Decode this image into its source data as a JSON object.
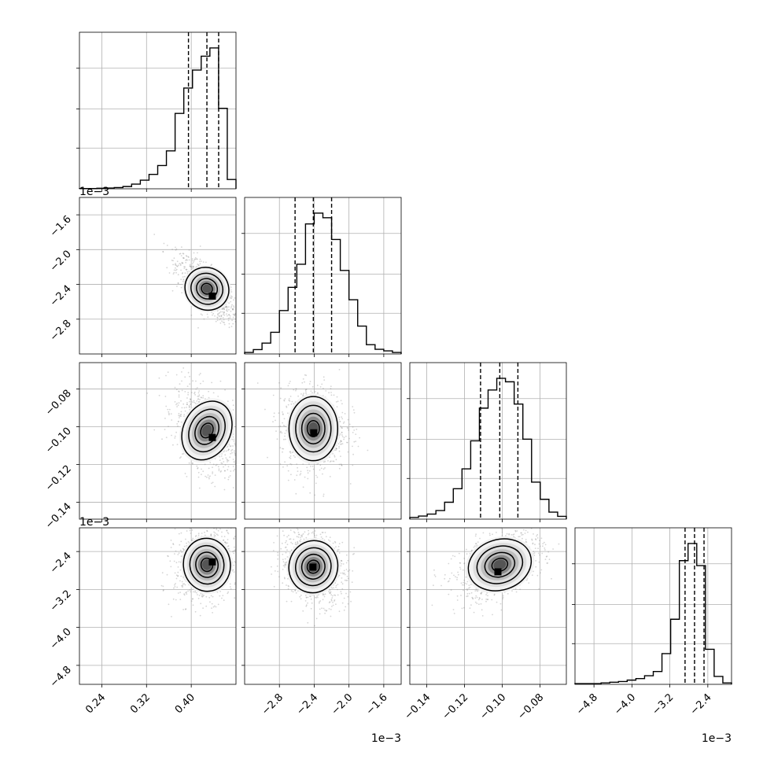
{
  "chart_data": {
    "type": "corner",
    "params": [
      {
        "ticks": [
          0.24,
          0.32,
          0.4
        ],
        "tick_labels": [
          "0.24",
          "0.32",
          "0.40"
        ],
        "range": [
          0.2,
          0.48
        ],
        "offset_label": ""
      },
      {
        "ticks": [
          -2.8,
          -2.4,
          -2.0,
          -1.6
        ],
        "tick_labels": [
          "−2.8",
          "−2.4",
          "−2.0",
          "−1.6"
        ],
        "range": [
          -3.2,
          -1.4
        ],
        "offset_label": "1e−3"
      },
      {
        "ticks": [
          -0.14,
          -0.12,
          -0.1,
          -0.08
        ],
        "tick_labels": [
          "−0.14",
          "−0.12",
          "−0.10",
          "−0.08"
        ],
        "range": [
          -0.149,
          -0.066
        ],
        "offset_label": ""
      },
      {
        "ticks": [
          -4.8,
          -4.0,
          -3.2,
          -2.4
        ],
        "tick_labels": [
          "−4.8",
          "−4.0",
          "−3.2",
          "−2.4"
        ],
        "range": [
          -5.2,
          -1.9
        ],
        "offset_label": "1e−3"
      }
    ],
    "diagonal_offset_labels": [
      "",
      "1e−3",
      "",
      ""
    ],
    "quantiles": [
      [
        0.395,
        0.428,
        0.449
      ],
      [
        -2.62,
        -2.41,
        -2.2
      ],
      [
        -0.1115,
        -0.1013,
        -0.0917
      ],
      [
        -2.88,
        -2.68,
        -2.48
      ]
    ],
    "histograms": [
      [
        0.002,
        0.002,
        0.004,
        0.005,
        0.009,
        0.016,
        0.033,
        0.061,
        0.102,
        0.165,
        0.269,
        0.535,
        0.715,
        0.843,
        0.941,
        1.0,
        0.571,
        0.066
      ],
      [
        0.011,
        0.031,
        0.077,
        0.154,
        0.308,
        0.473,
        0.637,
        0.923,
        1.0,
        0.967,
        0.813,
        0.593,
        0.385,
        0.198,
        0.066,
        0.033,
        0.022,
        0.011
      ],
      [
        0.012,
        0.022,
        0.036,
        0.061,
        0.12,
        0.216,
        0.357,
        0.556,
        0.788,
        0.917,
        1.0,
        0.975,
        0.817,
        0.568,
        0.263,
        0.141,
        0.05,
        0.02
      ],
      [
        0.005,
        0.005,
        0.005,
        0.01,
        0.015,
        0.02,
        0.03,
        0.041,
        0.061,
        0.091,
        0.218,
        0.462,
        0.878,
        1.0,
        0.843,
        0.249,
        0.056,
        0.01
      ]
    ],
    "hist_peak_frac": 0.9,
    "pairs": [
      {
        "row": 1,
        "col": 0,
        "center": [
          0.428,
          -2.45
        ],
        "sd": [
          0.02,
          0.14
        ],
        "rho": -0.72,
        "levels": [
          [
            0.43,
            -2.5
          ],
          [
            0.428,
            -2.45
          ],
          [
            0.42,
            -2.38
          ],
          [
            0.41,
            -2.35
          ]
        ],
        "darkest": [
          0.437,
          -2.53
        ]
      },
      {
        "row": 2,
        "col": 0,
        "center": [
          0.428,
          -0.102
        ],
        "sd": [
          0.021,
          0.0085
        ],
        "rho": -0.42,
        "levels": [
          [
            0.436,
            -0.104
          ],
          [
            0.43,
            -0.102
          ],
          [
            0.424,
            -0.1
          ],
          [
            0.418,
            -0.098
          ]
        ],
        "darkest": [
          0.437,
          -0.1055
        ]
      },
      {
        "row": 2,
        "col": 1,
        "center": [
          -2.41,
          -0.101
        ],
        "sd": [
          0.14,
          0.0085
        ],
        "rho": 0.0,
        "levels": [
          [
            -2.41,
            -0.103
          ],
          [
            -2.41,
            -0.101
          ],
          [
            -2.41,
            -0.1
          ],
          [
            -2.41,
            -0.1
          ]
        ],
        "darkest": [
          -2.41,
          -0.103
        ]
      },
      {
        "row": 3,
        "col": 0,
        "center": [
          0.428,
          -2.68
        ],
        "sd": [
          0.021,
          0.28
        ],
        "rho": 0.1,
        "levels": [
          [
            0.437,
            -2.61
          ],
          [
            0.432,
            -2.65
          ],
          [
            0.428,
            -2.68
          ],
          [
            0.42,
            -2.7
          ]
        ],
        "darkest": [
          0.437,
          -2.61
        ]
      },
      {
        "row": 3,
        "col": 1,
        "center": [
          -2.41,
          -2.72
        ],
        "sd": [
          0.14,
          0.28
        ],
        "rho": -0.25,
        "levels": [
          [
            -2.42,
            -2.72
          ],
          [
            -2.45,
            -2.7
          ],
          [
            -2.48,
            -2.69
          ],
          [
            -2.5,
            -2.67
          ]
        ],
        "darkest": [
          -2.42,
          -2.72
        ]
      },
      {
        "row": 3,
        "col": 2,
        "center": [
          -0.1013,
          -2.68
        ],
        "sd": [
          0.0085,
          0.28
        ],
        "rho": 0.45,
        "levels": [
          [
            -0.102,
            -2.8
          ],
          [
            -0.1,
            -2.75
          ],
          [
            -0.097,
            -2.7
          ],
          [
            -0.094,
            -2.64
          ]
        ],
        "darkest": [
          -0.1025,
          -2.82
        ]
      }
    ],
    "bin_grid": 20,
    "grid": true
  }
}
